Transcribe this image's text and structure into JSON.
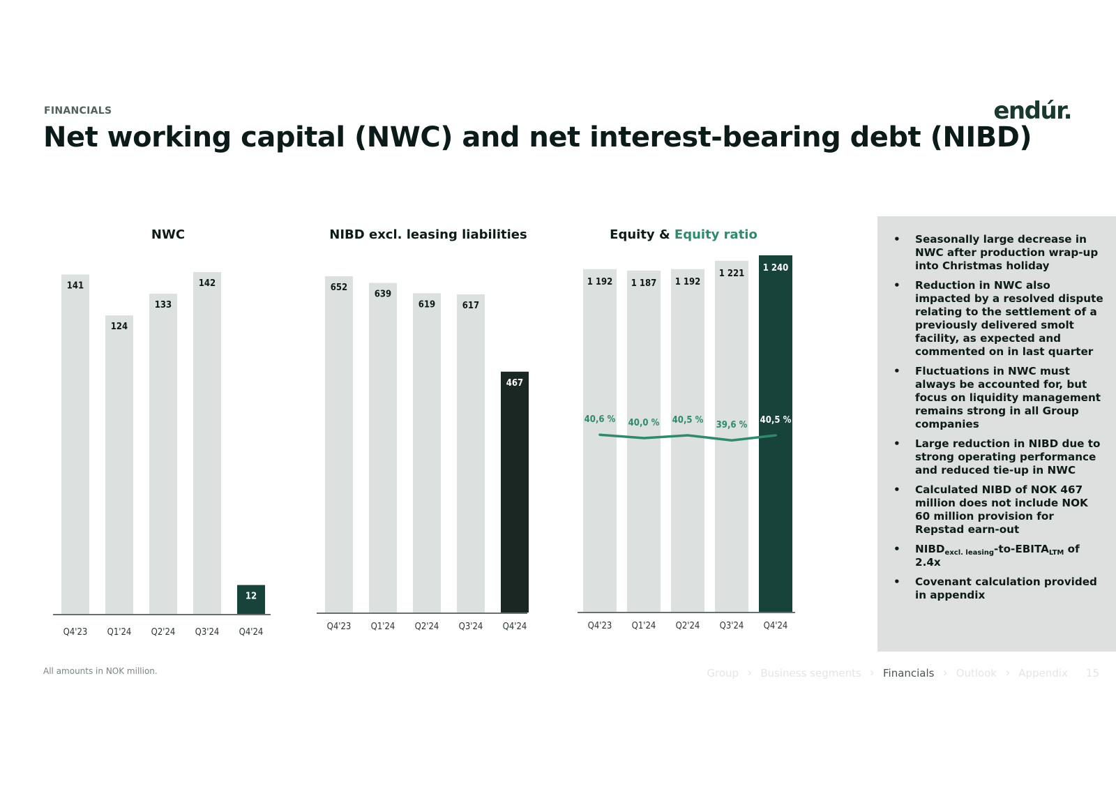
{
  "header": {
    "kicker": "FINANCIALS",
    "title": "Net working capital (NWC) and net interest-bearing debt (NIBD)",
    "logo_text": "endúr."
  },
  "colors": {
    "bar_light": "#dce0de",
    "bar_dark_green": "#17433a",
    "bar_black": "#1a2723",
    "equity_ratio": "#2f8a6c"
  },
  "chart_data": [
    {
      "type": "bar",
      "title": "NWC",
      "categories": [
        "Q4'23",
        "Q1'24",
        "Q2'24",
        "Q3'24",
        "Q4'24"
      ],
      "values": [
        141,
        124,
        133,
        142,
        12
      ],
      "value_labels": [
        "141",
        "124",
        "133",
        "142",
        "12"
      ],
      "highlight_last": true,
      "highlight_color": "#17433a",
      "ylim": [
        0,
        142
      ]
    },
    {
      "type": "bar",
      "title": "NIBD excl. leasing liabilities",
      "categories": [
        "Q4'23",
        "Q1'24",
        "Q2'24",
        "Q3'24",
        "Q4'24"
      ],
      "values": [
        652,
        639,
        619,
        617,
        467
      ],
      "value_labels": [
        "652",
        "639",
        "619",
        "617",
        "467"
      ],
      "highlight_last": true,
      "highlight_color": "#1a2723",
      "ylim": [
        0,
        652
      ]
    },
    {
      "type": "bar",
      "title": "Equity",
      "title_connector": " & ",
      "title_accent": "Equity ratio",
      "categories": [
        "Q4'23",
        "Q1'24",
        "Q2'24",
        "Q3'24",
        "Q4'24"
      ],
      "values": [
        1192,
        1187,
        1192,
        1221,
        1240
      ],
      "value_labels": [
        "1 192",
        "1 187",
        "1 192",
        "1 221",
        "1 240"
      ],
      "highlight_last": true,
      "highlight_color": "#17433a",
      "ylim": [
        0,
        1240
      ],
      "line_series": {
        "name": "Equity ratio",
        "values": [
          40.6,
          40.0,
          40.5,
          39.6,
          40.5
        ],
        "labels": [
          "40,6 %",
          "40,0 %",
          "40,5 %",
          "39,6 %",
          "40,5 %"
        ]
      }
    }
  ],
  "bullets": [
    {
      "text": "Seasonally large decrease in NWC after production wrap-up into Christmas holiday"
    },
    {
      "text": "Reduction in NWC also impacted by a resolved dispute relating to the settlement of a previously delivered smolt facility, as expected and commented on in last quarter"
    },
    {
      "text": "Fluctuations in NWC must always be accounted for, but focus on liquidity management remains strong in all Group companies"
    },
    {
      "text": "Large reduction in NIBD due to strong operating performance and reduced tie-up in NWC"
    },
    {
      "text": "Calculated NIBD of NOK 467 million does not include NOK 60 million provision for Repstad earn-out"
    },
    {
      "parts": [
        "NIBD",
        "excl. leasing",
        "-to-EBITA",
        "LTM",
        " of 2.4x"
      ]
    },
    {
      "text": "Covenant calculation provided in appendix"
    }
  ],
  "footnote": "All amounts in NOK million.",
  "nav": {
    "items": [
      "Group",
      "Business segments",
      "Financials",
      "Outlook",
      "Appendix"
    ],
    "active_index": 2,
    "page_number": "15"
  }
}
